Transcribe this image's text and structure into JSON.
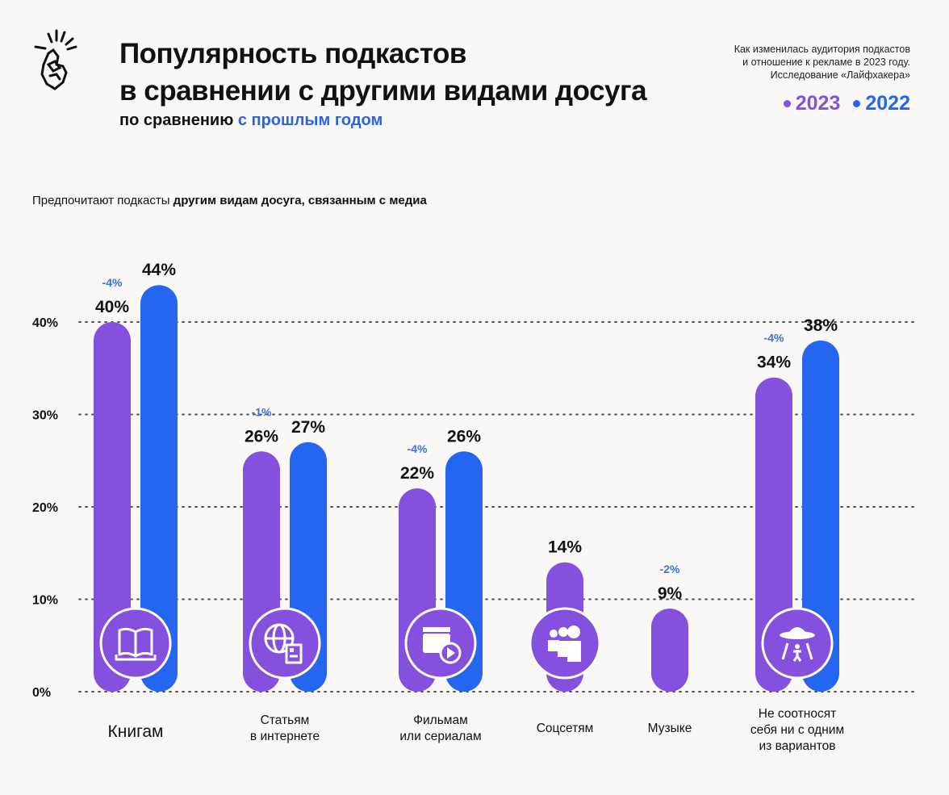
{
  "header": {
    "title_line1": "Популярность подкастов",
    "title_line2": "в сравнении с другими видами досуга",
    "subtitle_plain": "по сравнению ",
    "subtitle_accent": "с прошлым годом",
    "note_line1": "Как изменилась аудитория подкастов",
    "note_line2": "и отношение к рекламе в 2023 году.",
    "note_line3": "Исследование «Лайфхакера»",
    "logo_icon": "snapping-fingers-icon"
  },
  "caption": {
    "plain": "Предпочитают подкасты ",
    "bold": "другим видам досуга, связанным с медиа"
  },
  "colors": {
    "y2023": "#8550dd",
    "y2022": "#2566f0",
    "delta": "#3f70dd",
    "background": "#f9f8f7"
  },
  "chart_data": {
    "type": "bar",
    "title": "Популярность подкастов в сравнении с другими видами досуга",
    "subtitle": "по сравнению с прошлым годом",
    "xlabel": "",
    "ylabel": "",
    "ylim": [
      0,
      45
    ],
    "yticks": [
      0,
      10,
      20,
      30,
      40
    ],
    "ytick_labels": [
      "0%",
      "10%",
      "20%",
      "30%",
      "40%"
    ],
    "grid": true,
    "legend": "top-right",
    "categories": [
      {
        "label": [
          "Книгам"
        ],
        "icon": "open-book-icon",
        "big": true
      },
      {
        "label": [
          "Статьям",
          "в интернете"
        ],
        "icon": "globe-newspaper-icon"
      },
      {
        "label": [
          "Фильмам",
          "или сериалам"
        ],
        "icon": "clapperboard-play-icon"
      },
      {
        "label": [
          "Соцсетям"
        ],
        "icon": "people-group-icon"
      },
      {
        "label": [
          "Музыке"
        ],
        "icon": null
      },
      {
        "label": [
          "Не соотносят",
          "себя ни с одним",
          "из вариантов"
        ],
        "icon": "ufo-abduction-icon"
      }
    ],
    "series": [
      {
        "name": "2023",
        "values": [
          40,
          26,
          22,
          14,
          9,
          34
        ],
        "labels": [
          "40%",
          "26%",
          "22%",
          "14%",
          "9%",
          "34%"
        ]
      },
      {
        "name": "2022",
        "values": [
          44,
          27,
          26,
          null,
          null,
          38
        ],
        "labels": [
          "44%",
          "27%",
          "26%",
          null,
          null,
          "38%"
        ]
      }
    ],
    "deltas": [
      "-4%",
      "-1%",
      "-4%",
      null,
      "-2%",
      "-4%"
    ]
  }
}
